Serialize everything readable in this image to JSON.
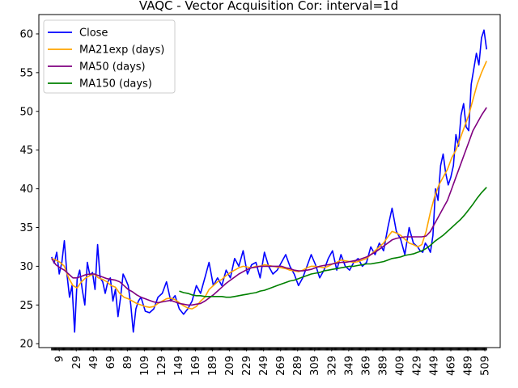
{
  "chart_data": {
    "type": "line",
    "title": "VAQC - Vector Acquisition Cor: interval=1d",
    "xlabel": "",
    "ylabel": "",
    "xlim": [
      -15,
      527
    ],
    "ylim": [
      19.5,
      62.5
    ],
    "grid": false,
    "legend_position": "top-left",
    "x_ticks": [
      9,
      29,
      49,
      69,
      89,
      109,
      129,
      149,
      169,
      189,
      209,
      229,
      249,
      269,
      289,
      309,
      329,
      349,
      369,
      389,
      409,
      429,
      449,
      469,
      489,
      509
    ],
    "y_ticks": [
      20,
      25,
      30,
      35,
      40,
      45,
      50,
      55,
      60
    ],
    "series": [
      {
        "name": "Close",
        "color": "#0000ff",
        "x": [
          0,
          3,
          6,
          9,
          12,
          15,
          18,
          21,
          24,
          27,
          30,
          33,
          36,
          39,
          42,
          45,
          48,
          51,
          54,
          57,
          60,
          63,
          66,
          69,
          72,
          75,
          78,
          81,
          84,
          87,
          90,
          93,
          96,
          99,
          102,
          105,
          110,
          115,
          120,
          125,
          130,
          135,
          140,
          145,
          150,
          155,
          160,
          165,
          170,
          175,
          180,
          185,
          190,
          195,
          200,
          205,
          210,
          215,
          220,
          225,
          230,
          235,
          240,
          245,
          250,
          255,
          260,
          265,
          270,
          275,
          280,
          285,
          290,
          295,
          300,
          305,
          310,
          315,
          320,
          325,
          330,
          335,
          340,
          345,
          350,
          355,
          360,
          365,
          370,
          375,
          380,
          385,
          390,
          395,
          400,
          405,
          410,
          415,
          420,
          425,
          430,
          433,
          436,
          439,
          442,
          445,
          448,
          451,
          454,
          457,
          460,
          463,
          466,
          469,
          472,
          475,
          478,
          481,
          484,
          487,
          490,
          493,
          496,
          499,
          502,
          505,
          508,
          511
        ],
        "values": [
          31.2,
          30.4,
          31.8,
          29.0,
          30.5,
          33.3,
          29.0,
          26.0,
          27.5,
          21.5,
          28.3,
          29.5,
          27.0,
          25.0,
          30.5,
          28.8,
          29.2,
          27.0,
          32.8,
          28.5,
          28.0,
          26.5,
          28.0,
          28.5,
          25.5,
          27.0,
          23.5,
          26.0,
          29.0,
          28.3,
          27.5,
          25.0,
          21.5,
          24.5,
          25.5,
          26.0,
          24.2,
          24.0,
          24.5,
          26.0,
          26.5,
          28.0,
          25.5,
          26.2,
          24.5,
          23.8,
          24.5,
          25.5,
          27.5,
          26.5,
          28.5,
          30.5,
          27.5,
          28.5,
          27.5,
          29.5,
          28.5,
          31.0,
          30.0,
          32.0,
          29.0,
          30.2,
          30.5,
          28.5,
          31.8,
          30.0,
          29.0,
          29.5,
          30.5,
          31.5,
          30.0,
          29.0,
          27.5,
          28.5,
          30.0,
          31.5,
          30.2,
          28.5,
          29.5,
          31.0,
          32.0,
          29.5,
          31.5,
          30.0,
          29.5,
          30.5,
          31.0,
          30.0,
          30.5,
          32.5,
          31.5,
          33.0,
          32.0,
          35.0,
          37.5,
          34.5,
          33.5,
          31.5,
          35.0,
          33.0,
          32.5,
          32.0,
          31.8,
          33.0,
          32.5,
          31.8,
          34.0,
          40.0,
          38.5,
          43.0,
          44.5,
          42.0,
          40.5,
          41.5,
          43.0,
          47.0,
          45.5,
          49.5,
          51.0,
          48.0,
          47.5,
          53.5,
          55.5,
          57.5,
          56.0,
          59.5,
          60.5,
          58.0
        ]
      },
      {
        "name": "MA21exp (days)",
        "color": "#ffa500",
        "x": [
          0,
          5,
          10,
          15,
          20,
          25,
          30,
          35,
          40,
          45,
          50,
          55,
          60,
          65,
          70,
          75,
          80,
          85,
          90,
          95,
          100,
          105,
          110,
          115,
          120,
          125,
          130,
          135,
          140,
          145,
          150,
          155,
          160,
          165,
          170,
          175,
          180,
          185,
          190,
          195,
          200,
          205,
          210,
          215,
          220,
          225,
          230,
          235,
          240,
          245,
          250,
          255,
          260,
          265,
          270,
          275,
          280,
          285,
          290,
          295,
          300,
          305,
          310,
          315,
          320,
          325,
          330,
          335,
          340,
          345,
          350,
          355,
          360,
          365,
          370,
          375,
          380,
          385,
          390,
          395,
          400,
          405,
          410,
          415,
          420,
          425,
          430,
          435,
          440,
          445,
          450,
          455,
          460,
          465,
          470,
          475,
          480,
          485,
          490,
          495,
          500,
          505,
          511
        ],
        "values": [
          31.0,
          30.8,
          30.5,
          30.0,
          28.5,
          27.5,
          27.2,
          28.0,
          28.5,
          28.8,
          29.0,
          28.5,
          28.3,
          28.0,
          27.5,
          27.3,
          26.5,
          26.0,
          25.8,
          25.5,
          25.2,
          25.0,
          24.8,
          24.7,
          24.8,
          25.2,
          25.5,
          25.8,
          25.9,
          25.7,
          25.3,
          24.9,
          24.6,
          24.5,
          24.8,
          25.5,
          26.0,
          27.0,
          27.5,
          28.0,
          28.3,
          28.8,
          29.2,
          29.5,
          29.8,
          30.0,
          29.9,
          29.8,
          30.0,
          30.0,
          30.2,
          30.1,
          30.0,
          29.9,
          29.8,
          29.7,
          29.5,
          29.4,
          29.3,
          29.5,
          29.8,
          30.0,
          30.0,
          29.9,
          29.8,
          30.0,
          30.3,
          30.5,
          30.8,
          30.7,
          30.6,
          30.5,
          30.6,
          30.8,
          31.0,
          31.5,
          32.0,
          32.5,
          33.0,
          33.8,
          34.5,
          34.3,
          34.0,
          33.5,
          33.0,
          32.8,
          32.5,
          32.8,
          34.5,
          37.0,
          39.0,
          40.5,
          41.5,
          42.5,
          44.0,
          45.0,
          46.5,
          48.0,
          49.5,
          51.5,
          53.5,
          55.0,
          56.5
        ]
      },
      {
        "name": "MA50 (days)",
        "color": "#800080",
        "x": [
          0,
          5,
          10,
          15,
          20,
          25,
          30,
          35,
          40,
          45,
          50,
          55,
          60,
          65,
          70,
          75,
          80,
          85,
          90,
          95,
          100,
          105,
          110,
          115,
          120,
          125,
          130,
          135,
          140,
          145,
          150,
          155,
          160,
          165,
          170,
          175,
          180,
          185,
          190,
          195,
          200,
          205,
          210,
          215,
          220,
          225,
          230,
          235,
          240,
          245,
          250,
          255,
          260,
          265,
          270,
          275,
          280,
          285,
          290,
          295,
          300,
          305,
          310,
          315,
          320,
          325,
          330,
          335,
          340,
          345,
          350,
          355,
          360,
          365,
          370,
          375,
          380,
          385,
          390,
          395,
          400,
          405,
          410,
          415,
          420,
          425,
          430,
          435,
          440,
          445,
          450,
          455,
          460,
          465,
          470,
          475,
          480,
          485,
          490,
          495,
          500,
          505,
          511
        ],
        "values": [
          31.0,
          30.2,
          29.8,
          29.5,
          29.0,
          28.5,
          28.5,
          28.7,
          28.9,
          29.0,
          29.0,
          28.8,
          28.6,
          28.4,
          28.3,
          28.2,
          28.0,
          27.5,
          27.0,
          26.7,
          26.3,
          26.0,
          25.8,
          25.6,
          25.4,
          25.3,
          25.4,
          25.5,
          25.6,
          25.4,
          25.2,
          25.1,
          25.0,
          25.0,
          25.1,
          25.2,
          25.5,
          25.9,
          26.3,
          26.8,
          27.3,
          27.8,
          28.2,
          28.6,
          29.0,
          29.3,
          29.6,
          29.8,
          29.9,
          30.0,
          30.0,
          30.0,
          30.0,
          30.0,
          30.0,
          29.8,
          29.7,
          29.5,
          29.4,
          29.4,
          29.5,
          29.6,
          29.8,
          30.0,
          30.1,
          30.2,
          30.3,
          30.4,
          30.5,
          30.5,
          30.6,
          30.7,
          30.8,
          31.0,
          31.2,
          31.5,
          31.8,
          32.2,
          32.6,
          33.0,
          33.4,
          33.6,
          33.7,
          33.8,
          33.8,
          33.8,
          33.8,
          33.8,
          33.9,
          34.5,
          35.5,
          36.5,
          37.5,
          38.5,
          40.0,
          41.5,
          43.0,
          44.5,
          46.0,
          47.5,
          48.5,
          49.5,
          50.5
        ]
      },
      {
        "name": "MA150 (days)",
        "color": "#008000",
        "x": [
          150,
          155,
          160,
          165,
          170,
          175,
          180,
          185,
          190,
          195,
          200,
          205,
          210,
          215,
          220,
          225,
          230,
          235,
          240,
          245,
          250,
          255,
          260,
          265,
          270,
          275,
          280,
          285,
          290,
          295,
          300,
          305,
          310,
          315,
          320,
          325,
          330,
          335,
          340,
          345,
          350,
          355,
          360,
          365,
          370,
          375,
          380,
          385,
          390,
          395,
          400,
          405,
          410,
          415,
          420,
          425,
          430,
          435,
          440,
          445,
          450,
          455,
          460,
          465,
          470,
          475,
          480,
          485,
          490,
          495,
          500,
          505,
          511
        ],
        "values": [
          26.8,
          26.6,
          26.5,
          26.3,
          26.2,
          26.2,
          26.1,
          26.1,
          26.1,
          26.1,
          26.1,
          26.0,
          26.0,
          26.1,
          26.2,
          26.3,
          26.4,
          26.5,
          26.6,
          26.8,
          26.9,
          27.1,
          27.3,
          27.5,
          27.7,
          27.9,
          28.1,
          28.2,
          28.4,
          28.6,
          28.8,
          29.0,
          29.1,
          29.2,
          29.4,
          29.5,
          29.6,
          29.7,
          29.8,
          29.9,
          30.0,
          30.0,
          30.1,
          30.2,
          30.3,
          30.3,
          30.4,
          30.5,
          30.6,
          30.8,
          31.0,
          31.1,
          31.2,
          31.4,
          31.5,
          31.6,
          31.8,
          32.0,
          32.3,
          32.7,
          33.2,
          33.6,
          34.0,
          34.5,
          35.0,
          35.5,
          36.0,
          36.6,
          37.3,
          38.0,
          38.8,
          39.5,
          40.2
        ]
      }
    ]
  }
}
